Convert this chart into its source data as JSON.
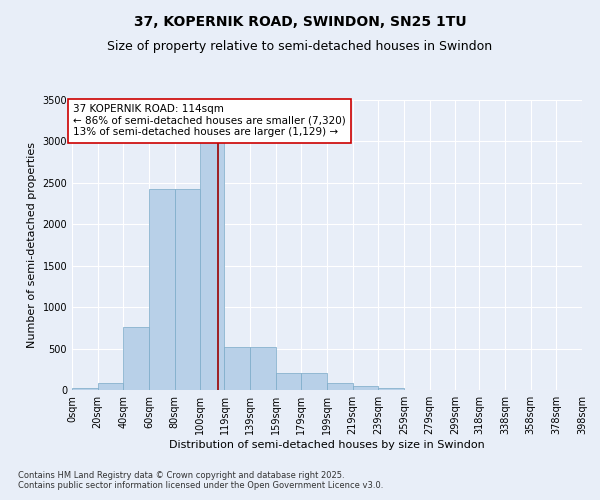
{
  "title_line1": "37, KOPERNIK ROAD, SWINDON, SN25 1TU",
  "title_line2": "Size of property relative to semi-detached houses in Swindon",
  "xlabel": "Distribution of semi-detached houses by size in Swindon",
  "ylabel": "Number of semi-detached properties",
  "footnote": "Contains HM Land Registry data © Crown copyright and database right 2025.\nContains public sector information licensed under the Open Government Licence v3.0.",
  "bin_labels": [
    "0sqm",
    "20sqm",
    "40sqm",
    "60sqm",
    "80sqm",
    "100sqm",
    "119sqm",
    "139sqm",
    "159sqm",
    "179sqm",
    "199sqm",
    "219sqm",
    "239sqm",
    "259sqm",
    "279sqm",
    "299sqm",
    "318sqm",
    "338sqm",
    "358sqm",
    "378sqm",
    "398sqm"
  ],
  "bin_edges": [
    0,
    20,
    40,
    60,
    80,
    100,
    119,
    139,
    159,
    179,
    199,
    219,
    239,
    259,
    279,
    299,
    318,
    338,
    358,
    378,
    398
  ],
  "bar_values": [
    30,
    80,
    760,
    2430,
    2430,
    3280,
    520,
    520,
    200,
    200,
    80,
    50,
    30,
    5,
    5,
    0,
    0,
    0,
    0,
    0
  ],
  "bar_color": "#b8d0e8",
  "bar_edge_color": "#7aaac8",
  "property_line_x": 114,
  "property_line_color": "#990000",
  "annotation_text": "37 KOPERNIK ROAD: 114sqm\n← 86% of semi-detached houses are smaller (7,320)\n13% of semi-detached houses are larger (1,129) →",
  "annotation_box_facecolor": "#ffffff",
  "annotation_box_edgecolor": "#cc0000",
  "ylim": [
    0,
    3500
  ],
  "yticks": [
    0,
    500,
    1000,
    1500,
    2000,
    2500,
    3000,
    3500
  ],
  "background_color": "#e8eef8",
  "grid_color": "#ffffff",
  "title1_fontsize": 10,
  "title2_fontsize": 9,
  "axis_label_fontsize": 8,
  "tick_fontsize": 7,
  "annotation_fontsize": 7.5,
  "footnote_fontsize": 6
}
